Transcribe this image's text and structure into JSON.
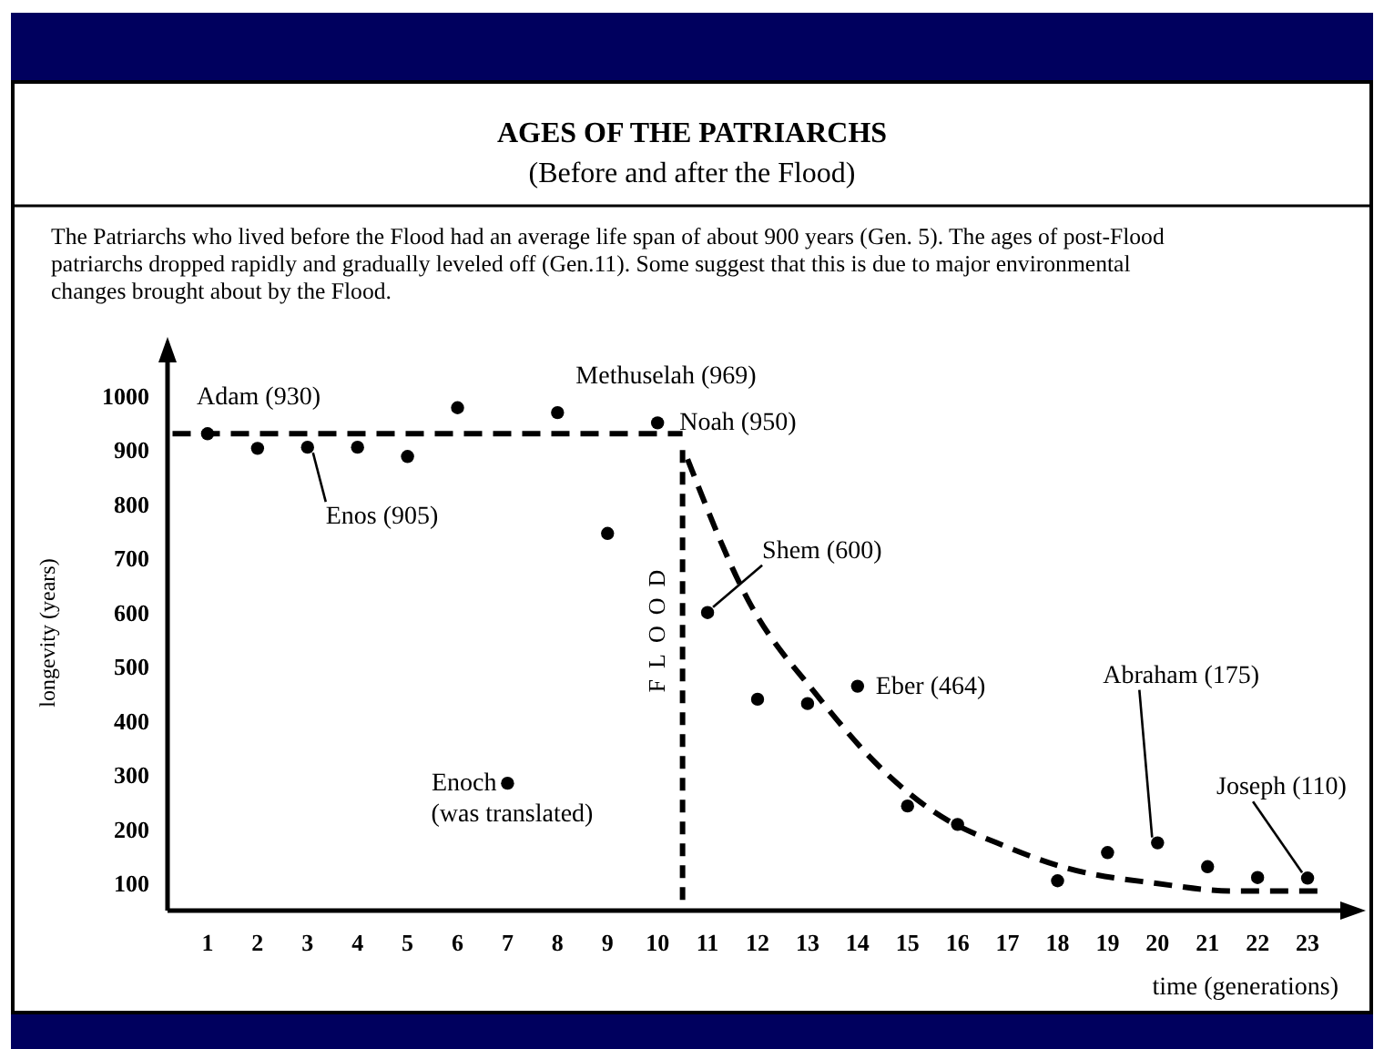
{
  "chart_data": {
    "type": "scatter",
    "title": "AGES OF THE PATRIARCHS",
    "subtitle": "(Before and after the Flood)",
    "xlabel": "time (generations)",
    "ylabel": "longevity (years)",
    "annotations": [
      "The Patriarchs who lived before the Flood had an average life span of about 900 years (Gen. 5). The ages of post-Flood patriarchs dropped rapidly and gradually leveled off (Gen.11). Some suggest that this is due to major environmental changes brought about by the Flood.",
      {
        "text": "Adam (930)",
        "x": 1,
        "y": 930
      },
      {
        "text": "Enos (905)",
        "x": 3,
        "y": 905
      },
      {
        "text": "Enoch\n(was translated)",
        "x": 7,
        "y": 285
      },
      {
        "text": "Methuselah (969)",
        "x": 8,
        "y": 969
      },
      {
        "text": "Noah (950)",
        "x": 10,
        "y": 950
      },
      {
        "text": "Shem (600)",
        "x": 11,
        "y": 600
      },
      {
        "text": "Eber (464)",
        "x": 14,
        "y": 464
      },
      {
        "text": "Abraham (175)",
        "x": 20,
        "y": 175
      },
      {
        "text": "Joseph (110)",
        "x": 23,
        "y": 110
      }
    ],
    "series": [
      {
        "color": "#000000",
        "marker": "circle",
        "x": [
          1,
          2,
          3,
          4,
          5,
          6,
          7,
          8,
          9,
          10,
          11,
          12,
          13,
          14,
          15,
          16,
          18,
          19,
          20,
          21,
          22,
          23
        ],
        "values": [
          930,
          903,
          905,
          905,
          888,
          978,
          285,
          969,
          746,
          950,
          600,
          440,
          432,
          464,
          243,
          209,
          105,
          157,
          175,
          131,
          111,
          110
        ]
      },
      {
        "type": "line",
        "color": "#000000",
        "marker": "none",
        "line_style": "dashed",
        "x": [
          0.3,
          10.5
        ],
        "values": [
          930,
          930
        ]
      },
      {
        "type": "line",
        "color": "#000000",
        "marker": "none",
        "line_style": "dashed",
        "x": [
          10.6,
          11.8,
          13.2,
          14.6,
          15.5,
          17.0,
          18.2,
          20.0,
          21.5,
          23.2
        ],
        "values": [
          883,
          625,
          446,
          301,
          234,
          167,
          128,
          100,
          86,
          86
        ]
      }
    ],
    "ref_lines": [
      {
        "axis": "x",
        "value": 10.5,
        "label": "FLOOD",
        "color": "#000000",
        "line_style": "dashed"
      }
    ],
    "xlim": [
      0.2,
      23.8
    ],
    "xticks": [
      1,
      2,
      3,
      4,
      5,
      6,
      7,
      8,
      9,
      10,
      11,
      12,
      13,
      14,
      15,
      16,
      17,
      18,
      19,
      20,
      21,
      22,
      23
    ],
    "ylim": [
      50,
      1075
    ],
    "yticks": [
      100,
      200,
      300,
      400,
      500,
      600,
      700,
      800,
      900,
      1000
    ],
    "grid": false
  }
}
